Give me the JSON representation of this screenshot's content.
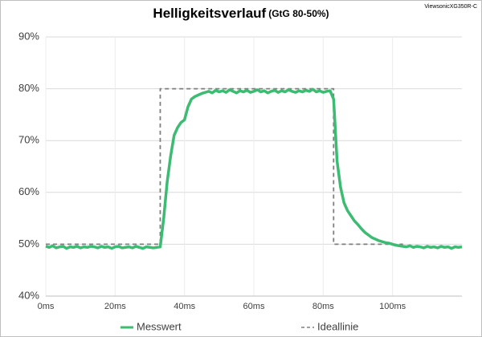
{
  "chart_data": {
    "type": "line",
    "title": "Helligkeitsverlauf",
    "subtitle": "(GtG 80-50%)",
    "annotation": "ViewsonicXG350R-C",
    "xlim": [
      0,
      120
    ],
    "xticks": [
      {
        "value": 0,
        "label": "0ms"
      },
      {
        "value": 20,
        "label": "20ms"
      },
      {
        "value": 40,
        "label": "40ms"
      },
      {
        "value": 60,
        "label": "60ms"
      },
      {
        "value": 80,
        "label": "80ms"
      },
      {
        "value": 100,
        "label": "100ms"
      }
    ],
    "ylim": [
      40,
      90
    ],
    "yticks": [
      {
        "value": 40,
        "label": "40%"
      },
      {
        "value": 50,
        "label": "50%"
      },
      {
        "value": 60,
        "label": "60%"
      },
      {
        "value": 70,
        "label": "70%"
      },
      {
        "value": 80,
        "label": "80%"
      },
      {
        "value": 90,
        "label": "90%"
      }
    ],
    "grid": true,
    "legend": "bottom",
    "series": [
      {
        "name": "Messwert",
        "color": "#3cbb72",
        "dash": false,
        "x": [
          0,
          1,
          2,
          3,
          4,
          5,
          6,
          7,
          8,
          9,
          10,
          11,
          12,
          13,
          14,
          15,
          16,
          17,
          18,
          19,
          20,
          21,
          22,
          23,
          24,
          25,
          26,
          27,
          28,
          29,
          30,
          31,
          32,
          33,
          34,
          35,
          36,
          37,
          38,
          39,
          40,
          41,
          42,
          43,
          44,
          45,
          46,
          47,
          48,
          49,
          50,
          51,
          52,
          53,
          54,
          55,
          56,
          57,
          58,
          59,
          60,
          61,
          62,
          63,
          64,
          65,
          66,
          67,
          68,
          69,
          70,
          71,
          72,
          73,
          74,
          75,
          76,
          77,
          78,
          79,
          80,
          81,
          82,
          83,
          84,
          85,
          86,
          87,
          88,
          89,
          90,
          91,
          92,
          93,
          94,
          95,
          96,
          97,
          98,
          99,
          100,
          101,
          102,
          103,
          104,
          105,
          106,
          107,
          108,
          109,
          110,
          111,
          112,
          113,
          114,
          115,
          116,
          117,
          118,
          119,
          120
        ],
        "values": [
          49.6,
          49.4,
          49.7,
          49.3,
          49.5,
          49.6,
          49.2,
          49.5,
          49.4,
          49.6,
          49.3,
          49.5,
          49.4,
          49.6,
          49.5,
          49.3,
          49.6,
          49.4,
          49.5,
          49.2,
          49.5,
          49.6,
          49.3,
          49.4,
          49.5,
          49.3,
          49.6,
          49.4,
          49.2,
          49.5,
          49.4,
          49.3,
          49.4,
          49.5,
          55,
          62,
          67,
          71,
          72.5,
          73.5,
          74,
          76.5,
          78,
          78.5,
          78.8,
          79.1,
          79.3,
          79.5,
          79.2,
          79.7,
          79.4,
          79.6,
          79.3,
          79.8,
          79.5,
          79.2,
          79.6,
          79.4,
          79.7,
          79.3,
          79.5,
          79.8,
          79.4,
          79.6,
          79.2,
          79.5,
          79.7,
          79.3,
          79.6,
          79.4,
          79.8,
          79.5,
          79.3,
          79.6,
          79.4,
          79.7,
          79.5,
          79.9,
          79.4,
          79.6,
          79.3,
          79.5,
          79.6,
          78,
          66,
          61,
          58,
          56.5,
          55.5,
          54.5,
          53.8,
          53,
          52.3,
          51.8,
          51.3,
          51,
          50.7,
          50.5,
          50.3,
          50.2,
          50,
          49.8,
          49.7,
          49.6,
          49.5,
          49.7,
          49.4,
          49.6,
          49.5,
          49.3,
          49.6,
          49.4,
          49.5,
          49.3,
          49.6,
          49.4,
          49.5,
          49.2,
          49.5,
          49.4,
          49.5
        ]
      },
      {
        "name": "Ideallinie",
        "color": "#7f7f7f",
        "dash": true,
        "x": [
          0,
          33,
          33,
          83,
          83,
          103
        ],
        "values": [
          50,
          50,
          80,
          80,
          50,
          50
        ]
      }
    ]
  }
}
